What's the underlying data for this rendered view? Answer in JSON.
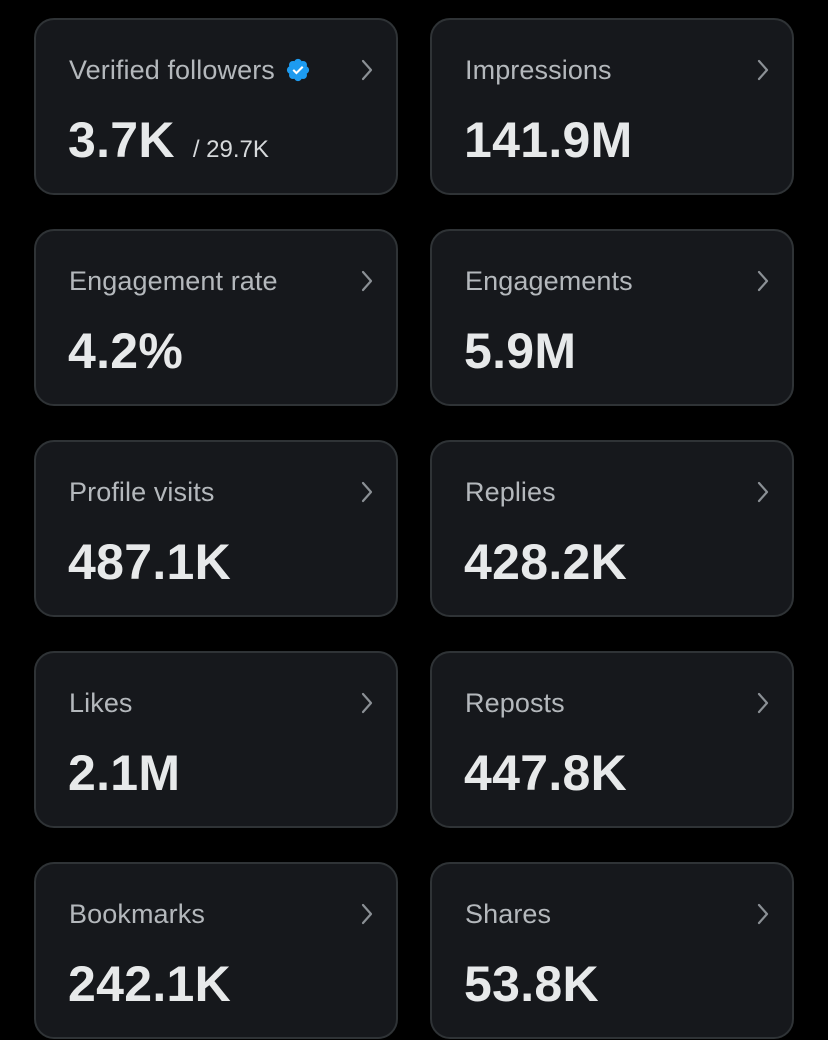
{
  "colors": {
    "background": "#000000",
    "card_background": "#16181c",
    "card_border": "#2f3336",
    "label_text": "#b4b8bc",
    "value_text": "#e7e9ea",
    "verified_badge": "#1d9bf0"
  },
  "cards": [
    {
      "label": "Verified followers",
      "value": "3.7K",
      "sub": "/ 29.7K",
      "icon": "verified-badge-icon",
      "action_icon": "chevron-right-icon"
    },
    {
      "label": "Impressions",
      "value": "141.9M",
      "action_icon": "chevron-right-icon"
    },
    {
      "label": "Engagement rate",
      "value": "4.2%",
      "action_icon": "chevron-right-icon"
    },
    {
      "label": "Engagements",
      "value": "5.9M",
      "action_icon": "chevron-right-icon"
    },
    {
      "label": "Profile visits",
      "value": "487.1K",
      "action_icon": "chevron-right-icon"
    },
    {
      "label": "Replies",
      "value": "428.2K",
      "action_icon": "chevron-right-icon"
    },
    {
      "label": "Likes",
      "value": "2.1M",
      "action_icon": "chevron-right-icon"
    },
    {
      "label": "Reposts",
      "value": "447.8K",
      "action_icon": "chevron-right-icon"
    },
    {
      "label": "Bookmarks",
      "value": "242.1K",
      "action_icon": "chevron-right-icon"
    },
    {
      "label": "Shares",
      "value": "53.8K",
      "action_icon": "chevron-right-icon"
    }
  ]
}
